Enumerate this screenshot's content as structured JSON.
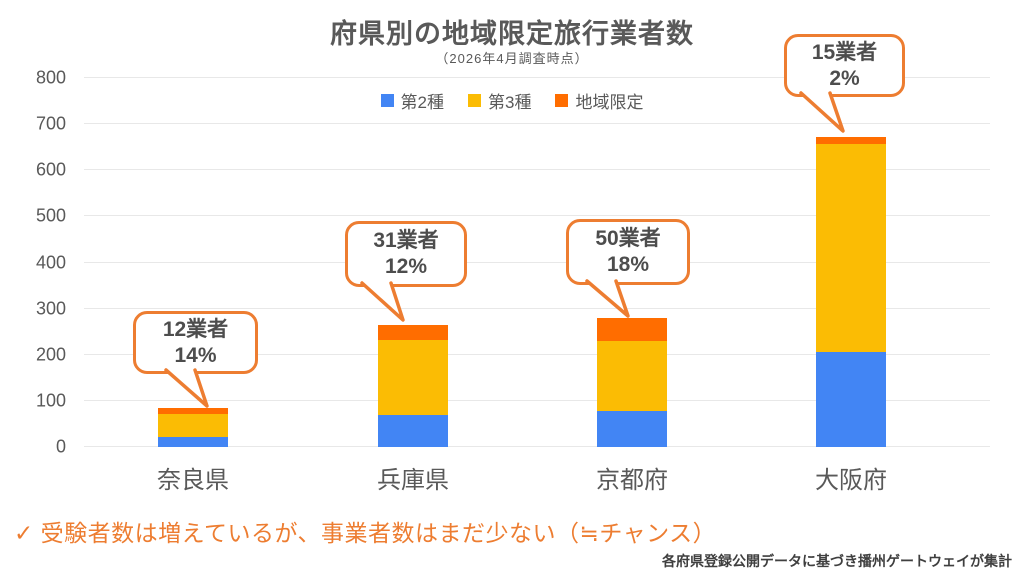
{
  "title": "府県別の地域限定旅行業者数",
  "subtitle": "（2026年4月調査時点）",
  "annotation_check": "✓ 受験者数は増えているが、事業者数はまだ少ない（≒チャンス）",
  "source": "各府県登録公開データに基づき播州ゲートウェイが集計",
  "colors": {
    "series_blue": "#4285F4",
    "series_yellow": "#FBBC04",
    "series_orange": "#FF6D00",
    "accent_orange": "#ED7D31",
    "text_gray": "#595959"
  },
  "chart_data": {
    "type": "bar",
    "stacked": true,
    "title": "府県別の地域限定旅行業者数",
    "subtitle": "（2026年4月調査時点）",
    "categories": [
      "奈良県",
      "兵庫県",
      "京都府",
      "大阪府"
    ],
    "series": [
      {
        "name": "第2種",
        "color": "#4285F4",
        "values": [
          22,
          70,
          77,
          207
        ]
      },
      {
        "name": "第3種",
        "color": "#FBBC04",
        "values": [
          50,
          163,
          153,
          450
        ]
      },
      {
        "name": "地域限定",
        "color": "#FF6D00",
        "values": [
          12,
          31,
          50,
          15
        ]
      }
    ],
    "totals": [
      84,
      264,
      280,
      672
    ],
    "xlabel": "",
    "ylabel": "",
    "ylim": [
      0,
      800
    ],
    "ytick_step": 100,
    "grid": true,
    "legend_position": "top-center",
    "annotations": [
      {
        "category": "奈良県",
        "line1": "12業者",
        "line2": "14%"
      },
      {
        "category": "兵庫県",
        "line1": "31業者",
        "line2": "12%"
      },
      {
        "category": "京都府",
        "line1": "50業者",
        "line2": "18%"
      },
      {
        "category": "大阪府",
        "line1": "15業者",
        "line2": "2%"
      }
    ]
  }
}
